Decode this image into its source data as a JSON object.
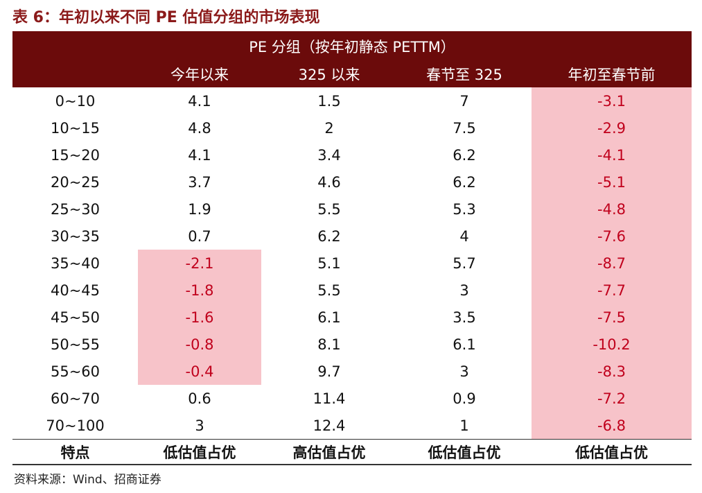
{
  "title": "表 6：年初以来不同 PE 估值分组的市场表现",
  "header": {
    "group_label": "PE 分组（按年初静态 PETTM）",
    "columns": [
      "",
      "今年以来",
      "325 以来",
      "春节至 325",
      "年初至春节前"
    ]
  },
  "rows": [
    {
      "range": "0~10",
      "ytd": "4.1",
      "since_325": "1.5",
      "festival_to_325": "7",
      "ytd_to_festival": "-3.1"
    },
    {
      "range": "10~15",
      "ytd": "4.8",
      "since_325": "2",
      "festival_to_325": "7.5",
      "ytd_to_festival": "-2.9"
    },
    {
      "range": "15~20",
      "ytd": "4.1",
      "since_325": "3.4",
      "festival_to_325": "6.2",
      "ytd_to_festival": "-4.1"
    },
    {
      "range": "20~25",
      "ytd": "3.7",
      "since_325": "4.6",
      "festival_to_325": "6.2",
      "ytd_to_festival": "-5.1"
    },
    {
      "range": "25~30",
      "ytd": "1.9",
      "since_325": "5.5",
      "festival_to_325": "5.3",
      "ytd_to_festival": "-4.8"
    },
    {
      "range": "30~35",
      "ytd": "0.7",
      "since_325": "6.2",
      "festival_to_325": "4",
      "ytd_to_festival": "-7.6"
    },
    {
      "range": "35~40",
      "ytd": "-2.1",
      "since_325": "5.1",
      "festival_to_325": "5.7",
      "ytd_to_festival": "-8.7"
    },
    {
      "range": "40~45",
      "ytd": "-1.8",
      "since_325": "5.5",
      "festival_to_325": "3",
      "ytd_to_festival": "-7.7"
    },
    {
      "range": "45~50",
      "ytd": "-1.6",
      "since_325": "6.1",
      "festival_to_325": "3.5",
      "ytd_to_festival": "-7.5"
    },
    {
      "range": "50~55",
      "ytd": "-0.8",
      "since_325": "8.1",
      "festival_to_325": "6.1",
      "ytd_to_festival": "-10.2"
    },
    {
      "range": "55~60",
      "ytd": "-0.4",
      "since_325": "9.7",
      "festival_to_325": "3",
      "ytd_to_festival": "-8.3"
    },
    {
      "range": "60~70",
      "ytd": "0.6",
      "since_325": "11.4",
      "festival_to_325": "0.9",
      "ytd_to_festival": "-7.2"
    },
    {
      "range": "70~100",
      "ytd": "3",
      "since_325": "12.4",
      "festival_to_325": "1",
      "ytd_to_festival": "-6.8"
    }
  ],
  "feature_row": {
    "label": "特点",
    "ytd": "低估值占优",
    "since_325": "高估值占优",
    "festival_to_325": "低估值占优",
    "ytd_to_festival": "低估值占优"
  },
  "source": "资料来源：Wind、招商证券",
  "colors": {
    "header_bg": "#6b0b0b",
    "title_text": "#8b1a1a",
    "negative_text": "#c0001c",
    "highlight_bg": "#f7c3c9"
  }
}
